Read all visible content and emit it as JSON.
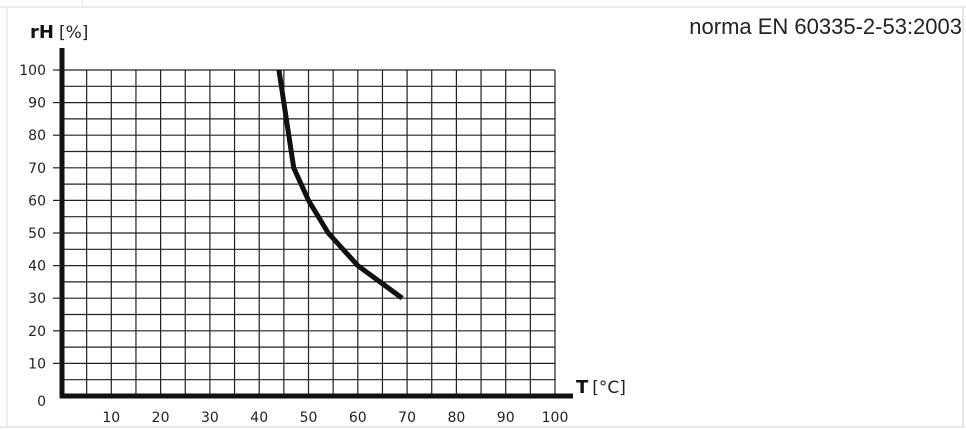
{
  "standard_note": "norma EN 60335-2-53:2003",
  "chart_data": {
    "type": "line",
    "y_axis": {
      "name": "rH",
      "unit": "[%]",
      "ticks": [
        "0",
        "10",
        "20",
        "30",
        "40",
        "50",
        "60",
        "70",
        "80",
        "90",
        "100"
      ],
      "range": [
        0,
        100
      ]
    },
    "x_axis": {
      "name": "T",
      "unit": "[°C]",
      "ticks": [
        "10",
        "20",
        "30",
        "40",
        "50",
        "60",
        "70",
        "80",
        "90",
        "100"
      ],
      "range": [
        0,
        100
      ]
    },
    "grid": true,
    "series": [
      {
        "x": [
          44,
          45,
          47,
          50,
          54,
          60,
          69
        ],
        "y": [
          100,
          90,
          70,
          60,
          50,
          40,
          30
        ]
      }
    ],
    "colors": {
      "line": "#111111",
      "grid": "#222222",
      "axis": "#111111"
    }
  }
}
